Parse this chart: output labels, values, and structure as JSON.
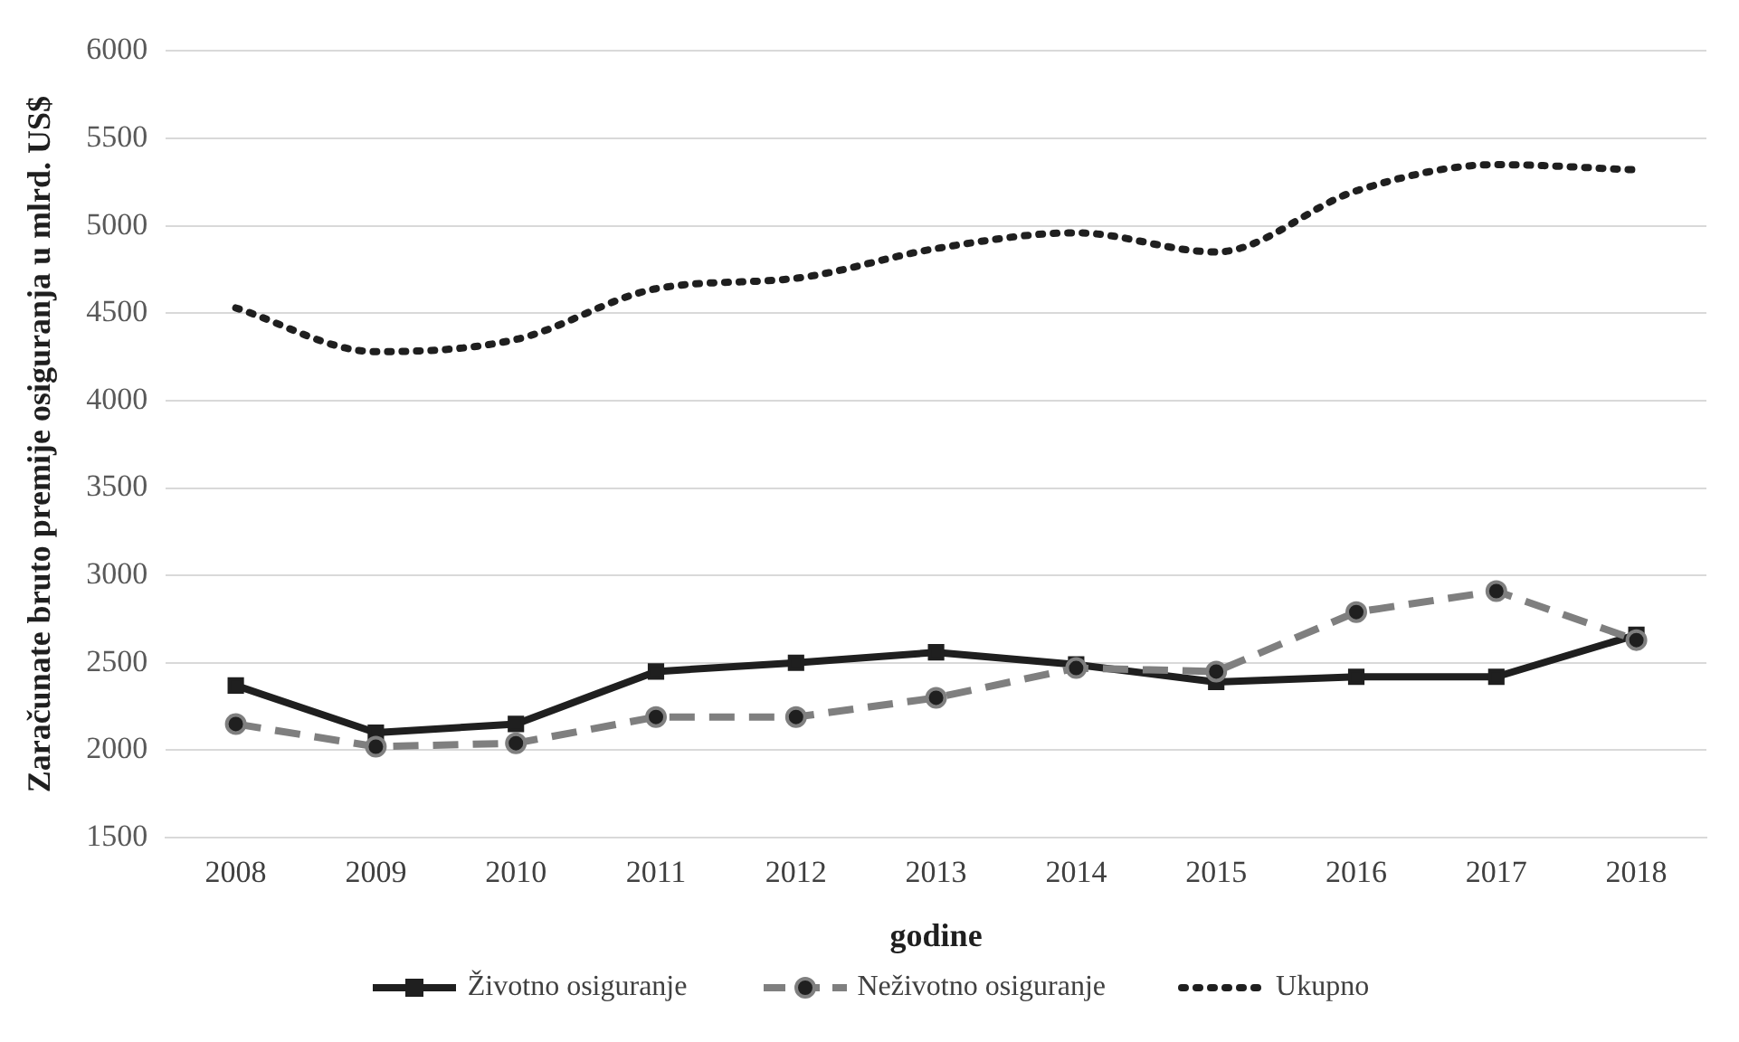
{
  "chart_data": {
    "type": "line",
    "xlabel": "godine",
    "ylabel": "Zaračunate bruto premije osiguranja u mlrd. US$",
    "categories": [
      "2008",
      "2009",
      "2010",
      "2011",
      "2012",
      "2013",
      "2014",
      "2015",
      "2016",
      "2017",
      "2018"
    ],
    "ylim": [
      1500,
      6000
    ],
    "yticks": [
      1500,
      2000,
      2500,
      3000,
      3500,
      4000,
      4500,
      5000,
      5500,
      6000
    ],
    "grid": "y",
    "legend": "bottom",
    "series": [
      {
        "name": "Životno osiguranje",
        "color": "#1f1f1f",
        "marker": "square",
        "line_style": "solid",
        "values": [
          2370,
          2100,
          2150,
          2450,
          2500,
          2560,
          2490,
          2390,
          2420,
          2420,
          2660
        ]
      },
      {
        "name": "Neživotno osiguranje",
        "color": "#7f7f7f",
        "marker": "circle",
        "line_style": "dashed",
        "values": [
          2150,
          2020,
          2040,
          2190,
          2190,
          2300,
          2470,
          2450,
          2790,
          2910,
          2630
        ]
      },
      {
        "name": "Ukupno",
        "color": "#1f1f1f",
        "marker": "none",
        "line_style": "dotted",
        "values": [
          4530,
          4280,
          4350,
          4640,
          4700,
          4870,
          4960,
          4850,
          5200,
          5350,
          5320
        ]
      }
    ]
  }
}
